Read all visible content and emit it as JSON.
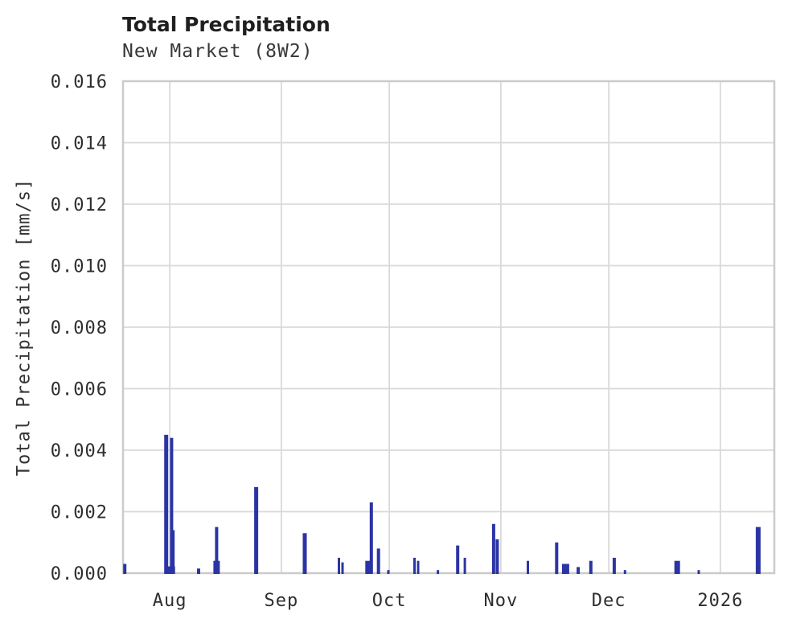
{
  "header": {
    "title": "Total Precipitation",
    "subtitle": "New Market (8W2)"
  },
  "chart_data": {
    "type": "bar",
    "title": "Total Precipitation",
    "subtitle": "New Market (8W2)",
    "xlabel": "",
    "ylabel": "Total Precipitation [mm/s]",
    "x_range": [
      "2025-07-19",
      "2026-01-16"
    ],
    "ylim": [
      0,
      0.016
    ],
    "grid": true,
    "legend": "none",
    "colors": {
      "bar": "#2b34a4",
      "grid": "#d9d9d9",
      "frame": "#cbcbcb",
      "tick_text": "#2e2e2e"
    },
    "y_ticks": [
      0,
      0.002,
      0.004,
      0.006,
      0.008,
      0.01,
      0.012,
      0.014,
      0.016
    ],
    "x_ticks": [
      {
        "t": "2025-08-01",
        "label": "Aug"
      },
      {
        "t": "2025-09-01",
        "label": "Sep"
      },
      {
        "t": "2025-10-01",
        "label": "Oct"
      },
      {
        "t": "2025-11-01",
        "label": "Nov"
      },
      {
        "t": "2025-12-01",
        "label": "Dec"
      },
      {
        "t": "2026-01-01",
        "label": "2026"
      }
    ],
    "series": [
      {
        "name": "Total Precipitation [mm/s]",
        "points": [
          {
            "t": "2025-07-19T12:00",
            "v": 0.0003,
            "w": 4
          },
          {
            "t": "2025-08-01",
            "v": 0.00022,
            "w": 13
          },
          {
            "t": "2025-07-31",
            "v": 0.0045,
            "w": 5
          },
          {
            "t": "2025-08-01T12:00",
            "v": 0.0044,
            "w": 4
          },
          {
            "t": "2025-08-02",
            "v": 0.0014,
            "w": 3
          },
          {
            "t": "2025-08-09",
            "v": 0.00015,
            "w": 4
          },
          {
            "t": "2025-08-14",
            "v": 0.0004,
            "w": 8
          },
          {
            "t": "2025-08-14",
            "v": 0.0015,
            "w": 4
          },
          {
            "t": "2025-08-25",
            "v": 0.0028,
            "w": 5
          },
          {
            "t": "2025-09-07T12:00",
            "v": 0.0013,
            "w": 5
          },
          {
            "t": "2025-09-17",
            "v": 0.0005,
            "w": 3
          },
          {
            "t": "2025-09-18",
            "v": 0.00035,
            "w": 3
          },
          {
            "t": "2025-09-25",
            "v": 0.0004,
            "w": 6
          },
          {
            "t": "2025-09-26",
            "v": 0.0023,
            "w": 4
          },
          {
            "t": "2025-09-28",
            "v": 0.0008,
            "w": 4
          },
          {
            "t": "2025-09-30T18:00",
            "v": 0.0001,
            "w": 3
          },
          {
            "t": "2025-10-08",
            "v": 0.0005,
            "w": 3
          },
          {
            "t": "2025-10-09",
            "v": 0.0004,
            "w": 3
          },
          {
            "t": "2025-10-14T12:00",
            "v": 0.0001,
            "w": 3
          },
          {
            "t": "2025-10-20",
            "v": 0.0009,
            "w": 4
          },
          {
            "t": "2025-10-22",
            "v": 0.0005,
            "w": 3
          },
          {
            "t": "2025-10-30",
            "v": 0.0016,
            "w": 4
          },
          {
            "t": "2025-10-31",
            "v": 0.0011,
            "w": 4
          },
          {
            "t": "2025-11-08T12:00",
            "v": 0.0004,
            "w": 3
          },
          {
            "t": "2025-11-16T12:00",
            "v": 0.001,
            "w": 4
          },
          {
            "t": "2025-11-19",
            "v": 0.0003,
            "w": 9
          },
          {
            "t": "2025-11-22T12:00",
            "v": 0.0002,
            "w": 4
          },
          {
            "t": "2025-11-26",
            "v": 0.0004,
            "w": 4
          },
          {
            "t": "2025-12-02T12:00",
            "v": 0.0005,
            "w": 4
          },
          {
            "t": "2025-12-05T12:00",
            "v": 0.0001,
            "w": 3
          },
          {
            "t": "2025-12-20",
            "v": 0.0004,
            "w": 7
          },
          {
            "t": "2025-12-26",
            "v": 0.0001,
            "w": 3
          },
          {
            "t": "2026-01-11T12:00",
            "v": 0.0015,
            "w": 6
          }
        ]
      }
    ]
  }
}
